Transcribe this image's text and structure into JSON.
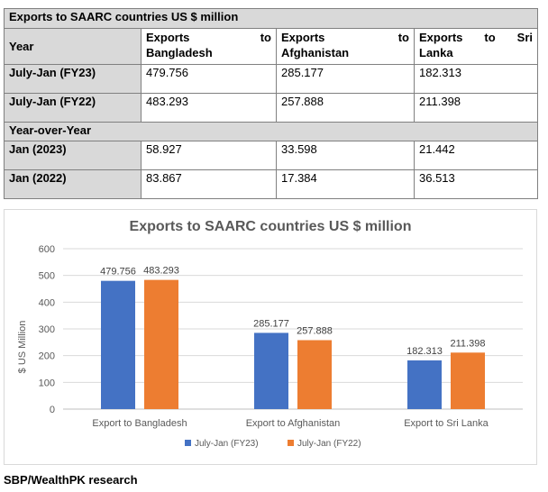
{
  "table": {
    "title": "Exports to SAARC countries US $ million",
    "header": {
      "year": "Year",
      "columns": [
        "Exports to Bangladesh",
        "Exports to Afghanistan",
        "Exports to Sri Lanka"
      ]
    },
    "rows": [
      {
        "label": "July-Jan (FY23)",
        "values": [
          "479.756",
          "285.177",
          "182.313"
        ]
      },
      {
        "label": "July-Jan (FY22)",
        "values": [
          "483.293",
          "257.888",
          "211.398"
        ]
      }
    ],
    "section": "Year-over-Year",
    "rows2": [
      {
        "label": "Jan (2023)",
        "values": [
          "58.927",
          "33.598",
          "21.442"
        ]
      },
      {
        "label": "Jan (2022)",
        "values": [
          "83.867",
          "17.384",
          "36.513"
        ]
      }
    ]
  },
  "chart_data": {
    "type": "bar",
    "title": "Exports to SAARC countries US $ million",
    "xlabel": "",
    "ylabel": "$ US Million",
    "ylim": [
      0,
      600
    ],
    "yticks": [
      0,
      100,
      200,
      300,
      400,
      500,
      600
    ],
    "grid": true,
    "legend": "bottom",
    "categories": [
      "Export to Bangladesh",
      "Export to Afghanistan",
      "Export to Sri Lanka"
    ],
    "series": [
      {
        "name": "July-Jan (FY23)",
        "values": [
          479.756,
          285.177,
          182.313
        ],
        "color": "#4472c4"
      },
      {
        "name": "July-Jan (FY22)",
        "values": [
          483.293,
          257.888,
          211.398
        ],
        "color": "#ed7d31"
      }
    ]
  },
  "footer": {
    "source": "SBP/WealthPK research"
  }
}
